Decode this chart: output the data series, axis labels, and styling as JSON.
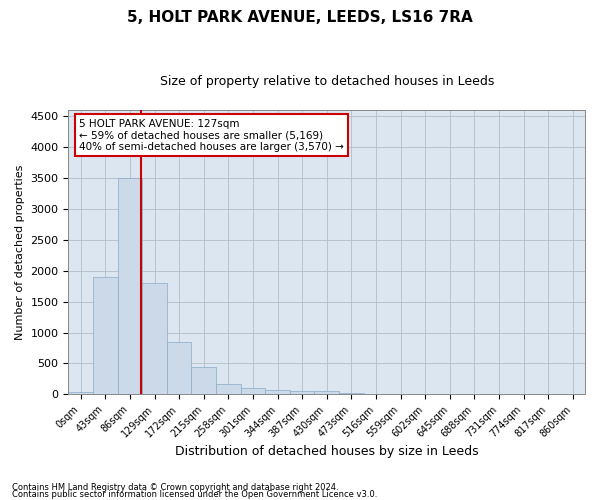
{
  "title1": "5, HOLT PARK AVENUE, LEEDS, LS16 7RA",
  "title2": "Size of property relative to detached houses in Leeds",
  "xlabel": "Distribution of detached houses by size in Leeds",
  "ylabel": "Number of detached properties",
  "bin_labels": [
    "0sqm",
    "43sqm",
    "86sqm",
    "129sqm",
    "172sqm",
    "215sqm",
    "258sqm",
    "301sqm",
    "344sqm",
    "387sqm",
    "430sqm",
    "473sqm",
    "516sqm",
    "559sqm",
    "602sqm",
    "645sqm",
    "688sqm",
    "731sqm",
    "774sqm",
    "817sqm",
    "860sqm"
  ],
  "bar_heights": [
    30,
    1900,
    3500,
    1800,
    850,
    440,
    165,
    100,
    70,
    60,
    50,
    15,
    5,
    3,
    2,
    1,
    1,
    1,
    1,
    0,
    0
  ],
  "bar_color": "#ccd9e8",
  "bar_edgecolor": "#8aaac8",
  "ylim": [
    0,
    4600
  ],
  "yticks": [
    0,
    500,
    1000,
    1500,
    2000,
    2500,
    3000,
    3500,
    4000,
    4500
  ],
  "annotation_title": "5 HOLT PARK AVENUE: 127sqm",
  "annotation_line1": "← 59% of detached houses are smaller (5,169)",
  "annotation_line2": "40% of semi-detached houses are larger (3,570) →",
  "vline_color": "#cc0000",
  "annotation_box_color": "#cc0000",
  "footer1": "Contains HM Land Registry data © Crown copyright and database right 2024.",
  "footer2": "Contains public sector information licensed under the Open Government Licence v3.0.",
  "bg_color": "#ffffff",
  "plot_bg_color": "#dce6f0",
  "grid_color": "#b0bec8",
  "title1_fontsize": 11,
  "title2_fontsize": 9,
  "label_fontsize": 8,
  "tick_fontsize": 8,
  "footer_fontsize": 6
}
